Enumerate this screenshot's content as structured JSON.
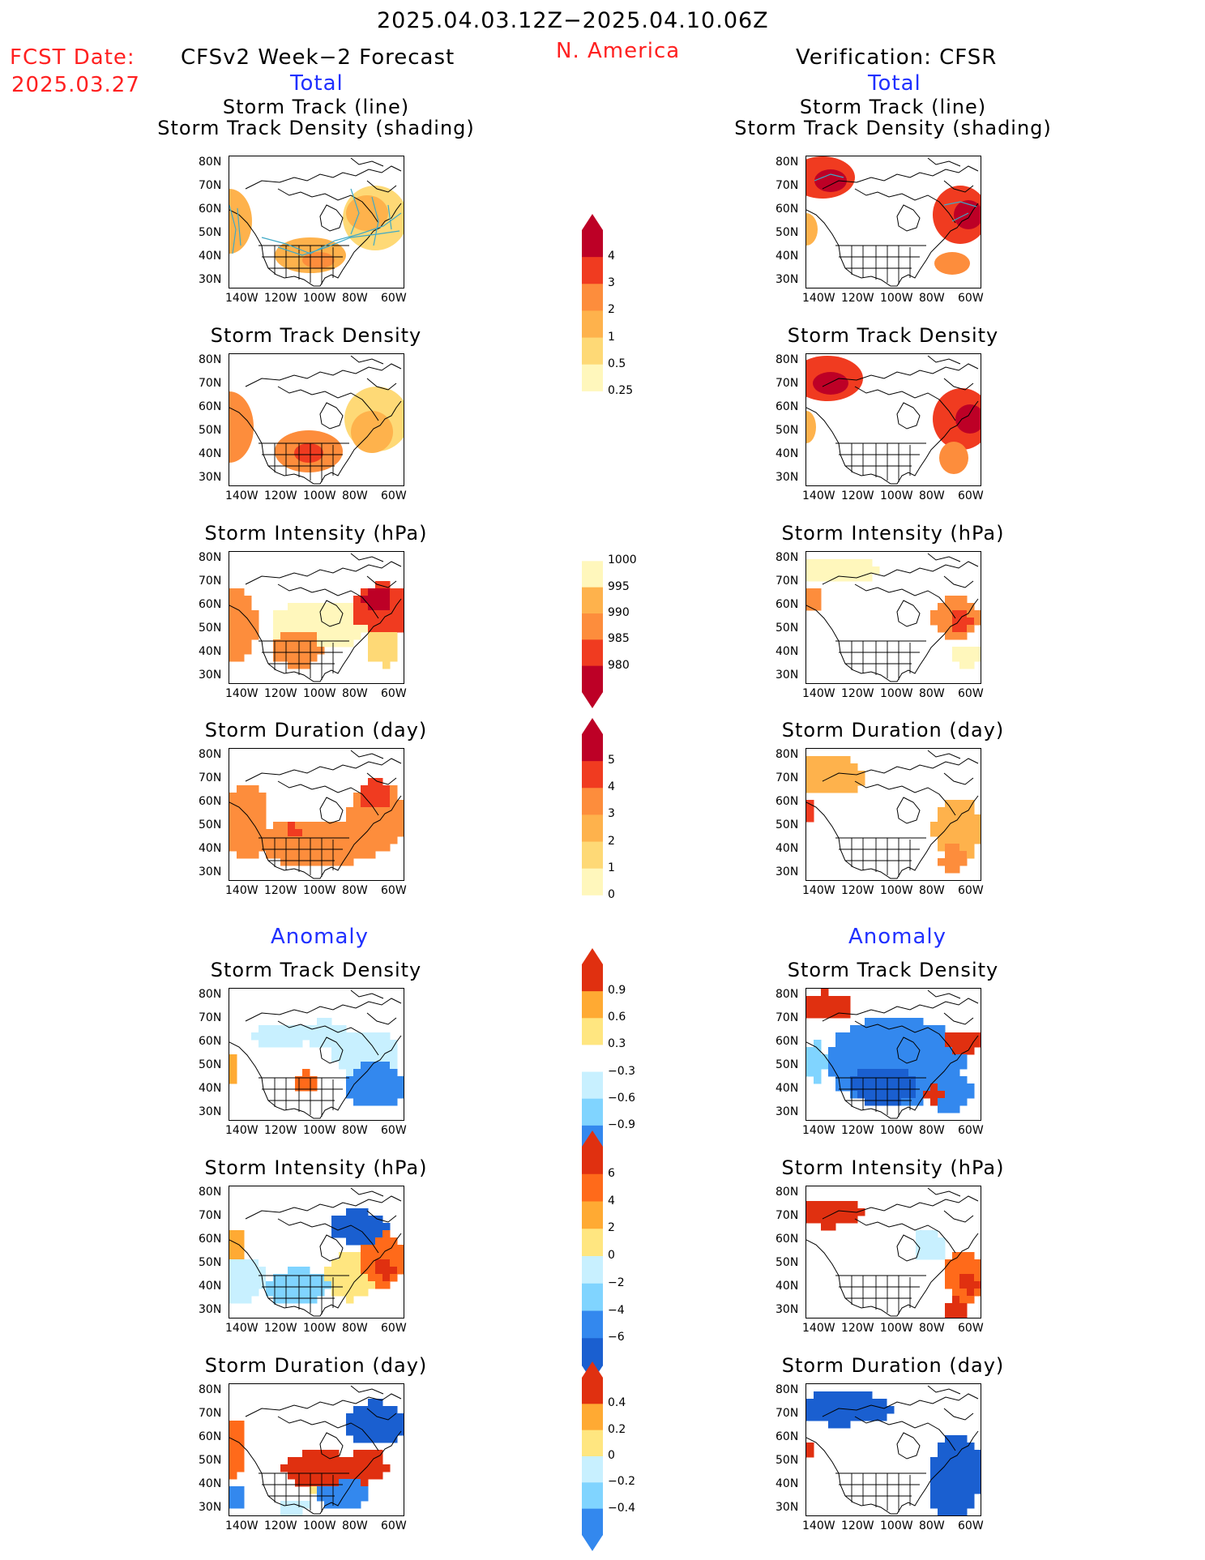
{
  "header": {
    "date_range": "2025.04.03.12Z−2025.04.10.06Z",
    "fcst_label": "FCST Date:",
    "fcst_date": "2025.03.27",
    "model_title": "CFSv2 Week−2 Forecast",
    "region": "N. America",
    "verification": "Verification: CFSR",
    "total_left": "Total",
    "total_right": "Total",
    "anomaly_left": "Anomaly",
    "anomaly_right": "Anomaly"
  },
  "panel_titles": {
    "track_line": "Storm Track (line)",
    "track_shading": "Storm Track Density (shading)",
    "density": "Storm Track Density",
    "intensity": "Storm Intensity (hPa)",
    "duration": "Storm Duration (day)"
  },
  "axes": {
    "lat_ticks": [
      "80N",
      "70N",
      "60N",
      "50N",
      "40N",
      "30N"
    ],
    "lon_ticks": [
      "140W",
      "120W",
      "100W",
      "80W",
      "60W"
    ]
  },
  "colorbars": {
    "density_total": [
      "4",
      "3",
      "2",
      "1",
      "0.5",
      "0.25"
    ],
    "intensity_total": [
      "1000",
      "995",
      "990",
      "985",
      "980"
    ],
    "duration_total": [
      "5",
      "4",
      "3",
      "2",
      "1",
      "0"
    ],
    "density_anom": [
      "0.9",
      "0.6",
      "0.3",
      "−0.3",
      "−0.6",
      "−0.9"
    ],
    "intensity_anom": [
      "6",
      "4",
      "2",
      "0",
      "−2",
      "−4",
      "−6"
    ],
    "duration_anom": [
      "0.4",
      "0.2",
      "0",
      "−0.2",
      "−0.4"
    ]
  },
  "colors": {
    "total_scale": [
      "#fff7bc",
      "#fed976",
      "#feb24c",
      "#fd8d3c",
      "#f03b20",
      "#bd0026"
    ],
    "anom_pos": [
      "#ffe680",
      "#ffaa33",
      "#ff6a1a",
      "#e03010"
    ],
    "anom_neg": [
      "#c8f0ff",
      "#80d4ff",
      "#3388ee",
      "#1a5fd0"
    ],
    "track_line": "#3fa9c6",
    "header_red": "#ff2020",
    "header_blue": "#2030ff"
  }
}
